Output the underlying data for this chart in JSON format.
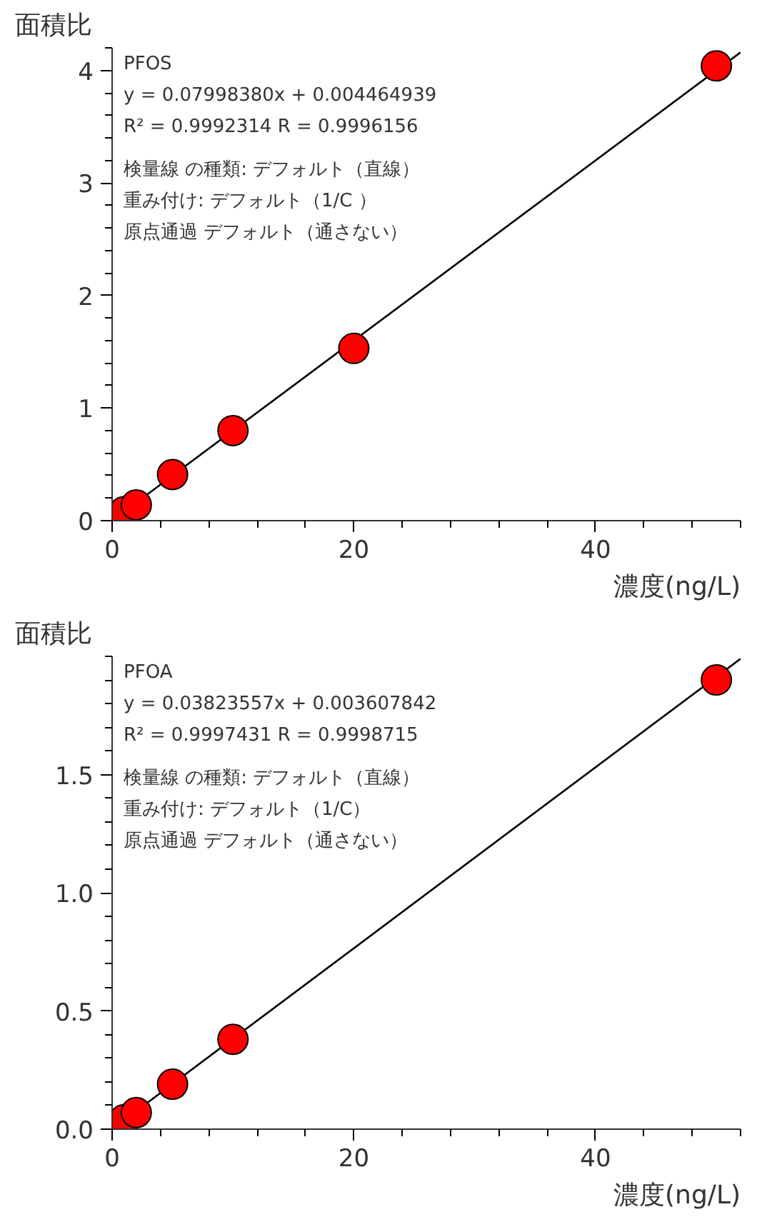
{
  "chart_data": [
    {
      "type": "scatter",
      "ylabel": "面積比",
      "xlabel": "濃度(ng/L)",
      "annotations": [
        "PFOS",
        "y = 0.07998380x + 0.004464939",
        "R² = 0.9992314    R = 0.9996156",
        "検量線 の種類:  デフォルト（直線）",
        "重み付け: デフォルト（1/C ）",
        "原点通過   デフォルト（通さない）"
      ],
      "xlim": [
        0,
        52
      ],
      "ylim": [
        0,
        4.2
      ],
      "xticks": [
        0,
        {
          "value": 4,
          "label": null
        },
        {
          "value": 8,
          "label": null
        },
        {
          "value": 12,
          "label": null
        },
        {
          "value": 16,
          "label": null
        },
        20,
        {
          "value": 24,
          "label": null
        },
        {
          "value": 28,
          "label": null
        },
        {
          "value": 32,
          "label": null
        },
        {
          "value": 36,
          "label": null
        },
        40,
        {
          "value": 44,
          "label": null
        },
        {
          "value": 48,
          "label": null
        },
        {
          "value": 52,
          "label": null
        }
      ],
      "yticks": [
        0,
        {
          "value": 0.2,
          "label": null
        },
        {
          "value": 0.4,
          "label": null
        },
        {
          "value": 0.6,
          "label": null
        },
        {
          "value": 0.8,
          "label": null
        },
        1,
        {
          "value": 1.2,
          "label": null
        },
        {
          "value": 1.4,
          "label": null
        },
        {
          "value": 1.6,
          "label": null
        },
        {
          "value": 1.8,
          "label": null
        },
        2,
        {
          "value": 2.2,
          "label": null
        },
        {
          "value": 2.4,
          "label": null
        },
        {
          "value": 2.6,
          "label": null
        },
        {
          "value": 2.8,
          "label": null
        },
        3,
        {
          "value": 3.2,
          "label": null
        },
        {
          "value": 3.4,
          "label": null
        },
        {
          "value": 3.6,
          "label": null
        },
        {
          "value": 3.8,
          "label": null
        },
        4,
        {
          "value": 4.2,
          "label": null
        }
      ],
      "grid": false,
      "series": [
        {
          "color": "#ff0000",
          "marker": "circle",
          "x": [
            1,
            2,
            5,
            10,
            20,
            50
          ],
          "values": [
            0.08,
            0.14,
            0.41,
            0.8,
            1.53,
            4.04
          ]
        },
        {
          "type": "line",
          "color": "#000000",
          "marker": "none",
          "line_style": "solid",
          "x": [
            0,
            52
          ],
          "values": [
            0,
            4.16
          ]
        }
      ]
    },
    {
      "type": "scatter",
      "ylabel": "面積比",
      "xlabel": "濃度(ng/L)",
      "annotations": [
        "PFOA",
        "y = 0.03823557x + 0.003607842",
        "R² = 0.9997431    R = 0.9998715",
        "検量線 の種類:  デフォルト（直線）",
        "重み付け: デフォルト（1/C）",
        "原点通過   デフォルト（通さない）"
      ],
      "xlim": [
        0,
        52
      ],
      "ylim": [
        0,
        2.0
      ],
      "xticks": [
        0,
        {
          "value": 4,
          "label": null
        },
        {
          "value": 8,
          "label": null
        },
        {
          "value": 12,
          "label": null
        },
        {
          "value": 16,
          "label": null
        },
        20,
        {
          "value": 24,
          "label": null
        },
        {
          "value": 28,
          "label": null
        },
        {
          "value": 32,
          "label": null
        },
        {
          "value": 36,
          "label": null
        },
        40,
        {
          "value": 44,
          "label": null
        },
        {
          "value": 48,
          "label": null
        },
        {
          "value": 52,
          "label": null
        }
      ],
      "yticks": [
        {
          "value": 0,
          "label": "0.0"
        },
        {
          "value": 0.1,
          "label": null
        },
        {
          "value": 0.2,
          "label": null
        },
        {
          "value": 0.3,
          "label": null
        },
        {
          "value": 0.4,
          "label": null
        },
        0.5,
        {
          "value": 0.6,
          "label": null
        },
        {
          "value": 0.7,
          "label": null
        },
        {
          "value": 0.8,
          "label": null
        },
        {
          "value": 0.9,
          "label": null
        },
        {
          "value": 1,
          "label": "1.0"
        },
        {
          "value": 1.1,
          "label": null
        },
        {
          "value": 1.2,
          "label": null
        },
        {
          "value": 1.3,
          "label": null
        },
        {
          "value": 1.4,
          "label": null
        },
        1.5,
        {
          "value": 1.6,
          "label": null
        },
        {
          "value": 1.7,
          "label": null
        },
        {
          "value": 1.8,
          "label": null
        },
        {
          "value": 1.9,
          "label": null
        },
        {
          "value": 2.0,
          "label": null
        }
      ],
      "grid": false,
      "series": [
        {
          "color": "#ff0000",
          "marker": "circle",
          "x": [
            1,
            2,
            5,
            10,
            50
          ],
          "values": [
            0.04,
            0.07,
            0.19,
            0.38,
            1.9
          ]
        },
        {
          "type": "line",
          "color": "#000000",
          "marker": "none",
          "line_style": "solid",
          "x": [
            0,
            52
          ],
          "values": [
            0,
            1.99
          ]
        }
      ]
    }
  ]
}
